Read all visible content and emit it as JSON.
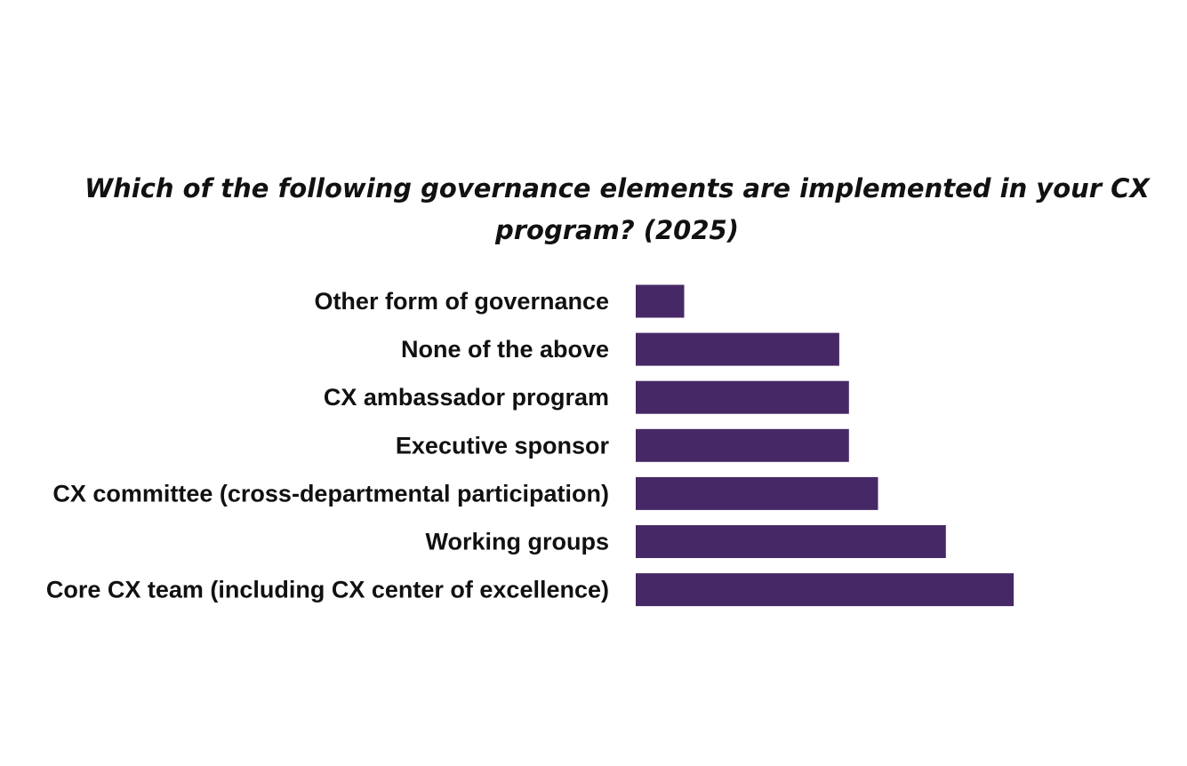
{
  "chart_data": {
    "type": "bar",
    "orientation": "horizontal",
    "title_lines": [
      "Which of the following governance elements are implemented in your CX",
      "program? (2025)"
    ],
    "categories": [
      "Other form of governance",
      "None of the above",
      "CX ambassador program",
      "Executive sponsor",
      "CX committee (cross-departmental participation)",
      "Working groups",
      "Core CX team (including CX center of excellence)"
    ],
    "values": [
      5,
      21,
      22,
      22,
      25,
      32,
      39
    ],
    "xlim": [
      0,
      40
    ],
    "bar_color": "#472866",
    "grid": false,
    "legend": "none"
  }
}
